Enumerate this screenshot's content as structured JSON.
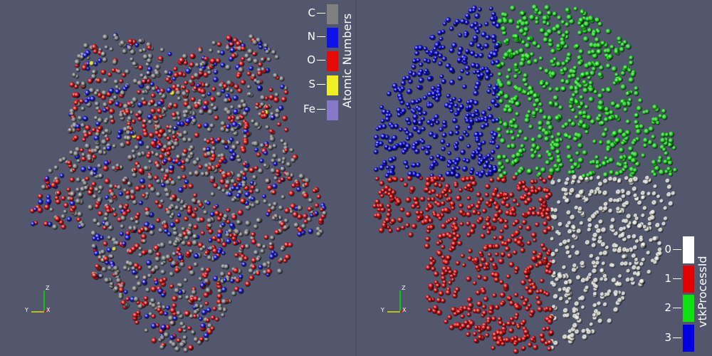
{
  "left_view": {
    "legend": {
      "title": "Atomic Numbers",
      "entries": [
        {
          "label": "C",
          "color": "#808080"
        },
        {
          "label": "N",
          "color": "#1010e8"
        },
        {
          "label": "O",
          "color": "#e80808"
        },
        {
          "label": "S",
          "color": "#f0f020"
        },
        {
          "label": "Fe",
          "color": "#8878c8"
        }
      ]
    },
    "axes": {
      "z": "Z",
      "y": "Y",
      "x": "X"
    }
  },
  "right_view": {
    "legend": {
      "title": "vtkProcessId",
      "entries": [
        {
          "label": "0",
          "color": "#ffffff"
        },
        {
          "label": "1",
          "color": "#e00000"
        },
        {
          "label": "2",
          "color": "#10e010"
        },
        {
          "label": "3",
          "color": "#0000e0"
        }
      ]
    },
    "axes": {
      "z": "Z",
      "y": "Y",
      "x": "X"
    }
  },
  "colors": {
    "background": "#52576e",
    "carbon": "#808080",
    "nitrogen": "#1010e8",
    "oxygen": "#e80808",
    "sulfur": "#f0f020",
    "process0": "#e8e8e0",
    "process1": "#e00000",
    "process2": "#10e010",
    "process3": "#0000e0"
  }
}
